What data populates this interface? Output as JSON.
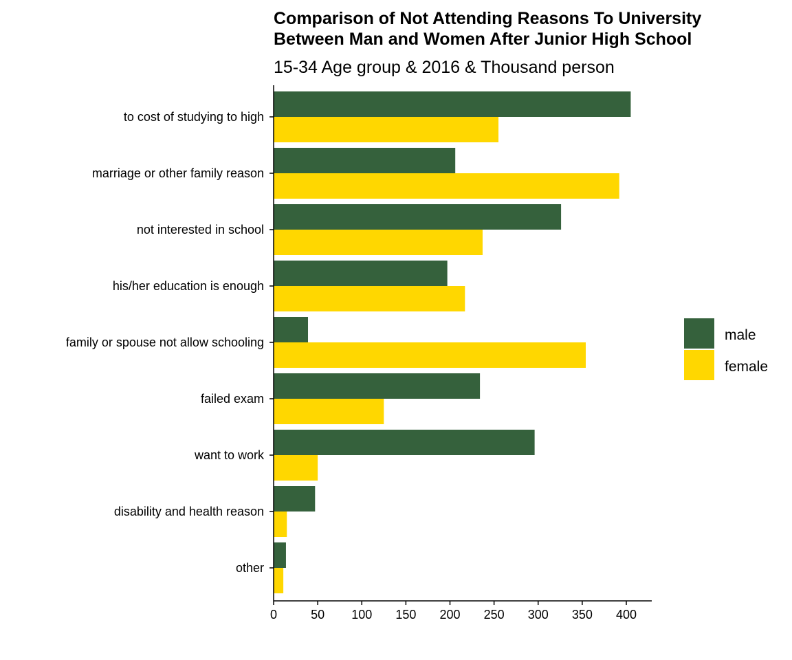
{
  "chart_data": {
    "type": "bar",
    "orientation": "horizontal",
    "title_lines": [
      "Comparison of Not Attending Reasons To University",
      "Between Man and Women After Junior High School"
    ],
    "subtitle": "15-34 Age group & 2016 & Thousand person",
    "categories": [
      "to cost of studying to high",
      "marriage or other family reason",
      "not interested in school",
      "his/her education is enough",
      "family or spouse not allow schooling",
      "failed exam",
      "want to work",
      "disability and health reason",
      "other"
    ],
    "series": [
      {
        "name": "male",
        "color": "#35613c",
        "values": [
          405,
          206,
          326,
          197,
          39,
          234,
          296,
          47,
          14
        ]
      },
      {
        "name": "female",
        "color": "#ffd700",
        "values": [
          255,
          392,
          237,
          217,
          354,
          125,
          50,
          15,
          11
        ]
      }
    ],
    "x_ticks": [
      0,
      50,
      100,
      150,
      200,
      250,
      300,
      350,
      400
    ],
    "xlim": [
      0,
      430
    ],
    "grid": false,
    "legend_position": "right"
  }
}
